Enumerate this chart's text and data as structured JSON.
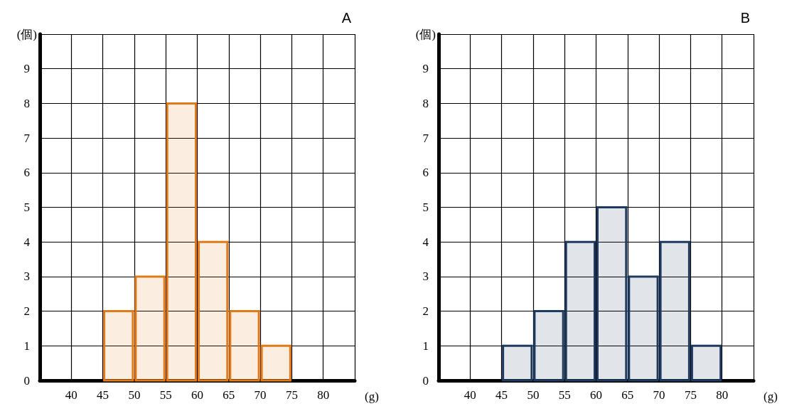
{
  "chart_data": [
    {
      "type": "histogram",
      "title": "A",
      "xlabel": "(g)",
      "ylabel": "(個)",
      "bins": [
        45,
        50,
        55,
        60,
        65,
        70,
        75
      ],
      "values": [
        2,
        3,
        8,
        4,
        2,
        1
      ],
      "color": "#e07a1a",
      "xlim": [
        35,
        85
      ],
      "xticks": [
        40,
        45,
        50,
        55,
        60,
        65,
        70,
        75,
        80,
        {
          "value": 85,
          "label": null
        }
      ],
      "ylim": [
        0,
        10
      ],
      "yticks": [
        0,
        1,
        2,
        3,
        4,
        5,
        6,
        7,
        8,
        9,
        {
          "value": 10,
          "label": null
        }
      ],
      "grid": true
    },
    {
      "type": "histogram",
      "title": "B",
      "xlabel": "(g)",
      "ylabel": "(個)",
      "bins": [
        45,
        50,
        55,
        60,
        65,
        70,
        75,
        80
      ],
      "values": [
        1,
        2,
        4,
        5,
        3,
        4,
        1
      ],
      "color": "#1f3a5f",
      "xlim": [
        35,
        85
      ],
      "xticks": [
        40,
        45,
        50,
        55,
        60,
        65,
        70,
        75,
        80,
        {
          "value": 85,
          "label": null
        }
      ],
      "ylim": [
        0,
        10
      ],
      "yticks": [
        0,
        1,
        2,
        3,
        4,
        5,
        6,
        7,
        8,
        9,
        {
          "value": 10,
          "label": null
        }
      ],
      "grid": true
    }
  ]
}
